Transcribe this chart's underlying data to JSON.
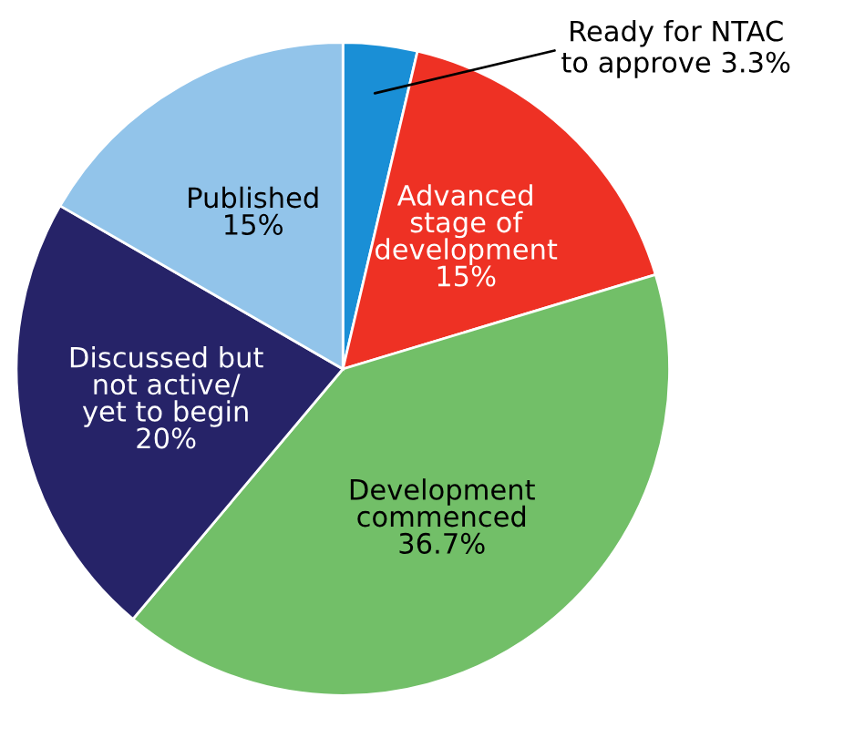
{
  "chart_data": {
    "type": "pie",
    "categories": [
      "Ready for NTAC\nto approve",
      "Advanced\nstage of\ndevelopment",
      "Development\ncommenced",
      "Discussed but\nnot active/\nyet to begin",
      "Published"
    ],
    "values": [
      3.3,
      15,
      36.7,
      20,
      15
    ],
    "value_labels": [
      "3.3%",
      "15%",
      "36.7%",
      "20%",
      "15%"
    ],
    "colors": [
      "#1a8fd6",
      "#ee3124",
      "#72bf68",
      "#262368",
      "#92c4ea"
    ]
  }
}
